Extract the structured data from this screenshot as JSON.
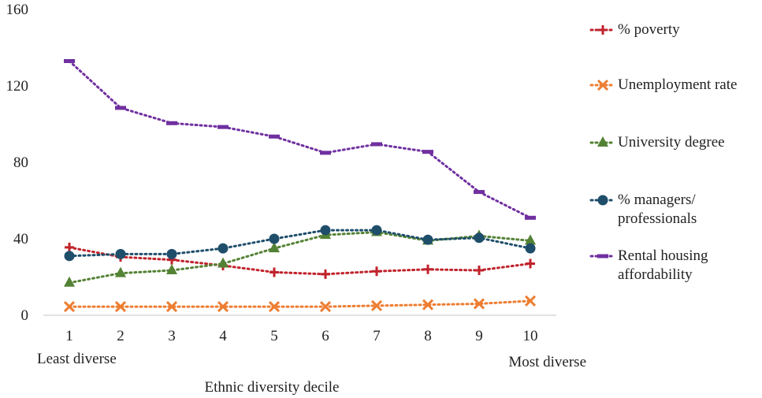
{
  "chart_data": {
    "type": "line",
    "x": [
      1,
      2,
      3,
      4,
      5,
      6,
      7,
      8,
      9,
      10
    ],
    "xticks": [
      "1",
      "2",
      "3",
      "4",
      "5",
      "6",
      "7",
      "8",
      "9",
      "10"
    ],
    "yticks": [
      "0",
      "40",
      "80",
      "120",
      "160"
    ],
    "ylim": [
      0,
      160
    ],
    "xlabel": "Ethnic diversity decile",
    "x_annotations": {
      "left": "Least diverse",
      "right": "Most diverse"
    },
    "grid": "none",
    "legend_position": "right",
    "series": [
      {
        "name": "% poverty",
        "color": "#c0232c",
        "marker": "plus",
        "line": "dotted",
        "values": [
          35.5,
          30.5,
          29,
          26,
          22.5,
          21.5,
          23,
          24,
          23.5,
          27
        ]
      },
      {
        "name": "Unemployment rate",
        "color": "#ed7d31",
        "marker": "x",
        "line": "dotted",
        "values": [
          4.5,
          4.5,
          4.5,
          4.5,
          4.5,
          4.5,
          5,
          5.5,
          6,
          7.5
        ]
      },
      {
        "name": "University degree",
        "color": "#548235",
        "marker": "triangle",
        "line": "dotted",
        "values": [
          17,
          22,
          23.5,
          27,
          35,
          42,
          43.5,
          39,
          41.5,
          39
        ]
      },
      {
        "name": "% managers/ professionals",
        "color": "#1f4e6b",
        "marker": "circle",
        "line": "dotted",
        "values": [
          31,
          32,
          32,
          35,
          40,
          44.5,
          44.5,
          39.5,
          40.5,
          35
        ]
      },
      {
        "name": "Rental housing affordability",
        "color": "#7030a0",
        "marker": "dash",
        "line": "dotted",
        "values": [
          133,
          108.5,
          100.5,
          98.5,
          93.5,
          85,
          89.5,
          85.5,
          64.5,
          51
        ]
      }
    ]
  },
  "legend": [
    {
      "label": "% poverty"
    },
    {
      "label": "Unemployment rate"
    },
    {
      "label": "University degree"
    },
    {
      "label": "% managers/\nprofessionals"
    },
    {
      "label": "Rental housing\naffordability"
    }
  ]
}
